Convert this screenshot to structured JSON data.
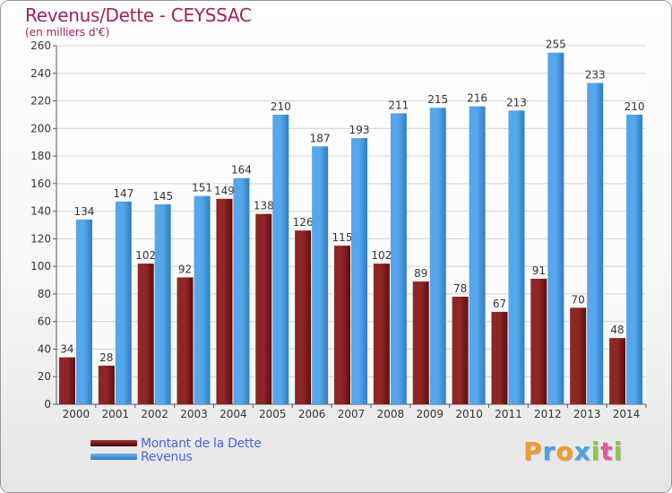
{
  "header": {
    "title": "Revenus/Dette - CEYSSAC",
    "subtitle": "(en milliers d'€)"
  },
  "chart_data": {
    "type": "bar",
    "categories": [
      "2000",
      "2001",
      "2002",
      "2003",
      "2004",
      "2005",
      "2006",
      "2007",
      "2008",
      "2009",
      "2010",
      "2011",
      "2012",
      "2013",
      "2014"
    ],
    "series": [
      {
        "name": "Montant de la Dette",
        "values": [
          34,
          28,
          102,
          92,
          149,
          138,
          126,
          115,
          102,
          89,
          78,
          67,
          91,
          70,
          48
        ],
        "color": "#7a1a1a"
      },
      {
        "name": "Revenus",
        "values": [
          134,
          147,
          145,
          151,
          164,
          210,
          187,
          193,
          211,
          215,
          216,
          213,
          255,
          233,
          210
        ],
        "color": "#3d8fd8"
      }
    ],
    "ylim": [
      0,
      260
    ],
    "yticks": [
      0,
      20,
      40,
      60,
      80,
      100,
      120,
      140,
      160,
      180,
      200,
      220,
      240,
      260
    ],
    "grid": true,
    "legend_position": "bottom-left"
  },
  "logo": {
    "text": "Proxiti",
    "letters": [
      {
        "ch": "P",
        "color": "#f29b2a"
      },
      {
        "ch": "r",
        "color": "#4aa3df"
      },
      {
        "ch": "o",
        "color": "#f29b2a"
      },
      {
        "ch": "x",
        "color": "#4aa3df"
      },
      {
        "ch": "i",
        "color": "#8cc63f"
      },
      {
        "ch": "t",
        "color": "#e05a9a"
      },
      {
        "ch": "i",
        "color": "#8cc63f"
      }
    ]
  }
}
